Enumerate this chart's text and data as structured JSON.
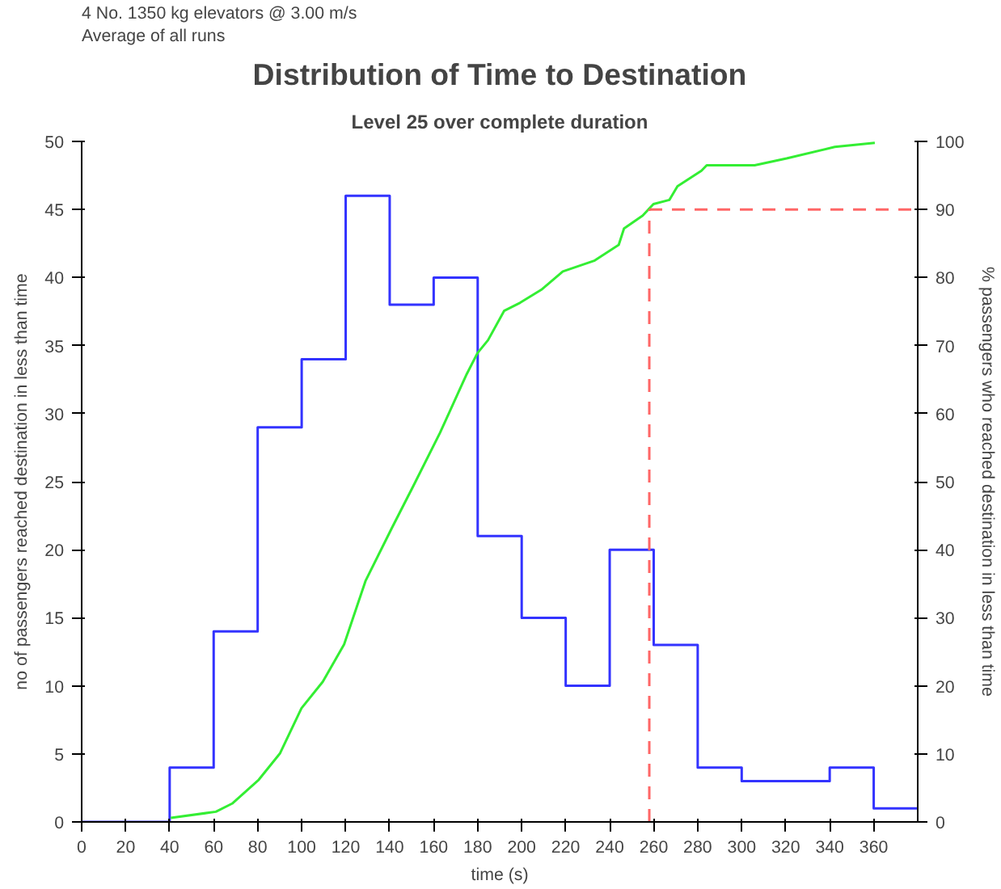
{
  "chart_data": {
    "type": "histogram",
    "title": "Distribution of Time to Destination",
    "subtitle": "Level 25 over complete duration",
    "annotations": [
      "4 No. 1350 kg elevators @ 3.00 m/s",
      "Average of all runs"
    ],
    "xlabel": "time (s)",
    "ylabel": "no of passengers reached destination in less than time",
    "y2label": "% passengers who reached destination in less than time",
    "bins": [
      0,
      20,
      40,
      60,
      80,
      100,
      120,
      140,
      160,
      180,
      200,
      220,
      240,
      260,
      280,
      300,
      320,
      340,
      360,
      380
    ],
    "values": [
      0,
      0,
      4,
      14,
      29,
      34,
      46,
      38,
      40,
      21,
      15,
      10,
      20,
      13,
      4,
      3,
      3,
      4,
      1
    ],
    "color": "#3333ff",
    "series": [
      {
        "type": "line",
        "axis": "y2",
        "color": "#33ee33",
        "x": [
          40.5,
          61,
          68.4,
          80.5,
          90.2,
          99.9,
          109.6,
          119.3,
          129,
          141,
          150.8,
          162.9,
          175,
          179.9,
          184.7,
          192,
          199.3,
          208.9,
          218.7,
          233.2,
          244.1,
          246.5,
          255,
          259.9,
          267.1,
          270.8,
          281.7,
          284.1,
          305.9,
          320.4,
          342.3,
          360.5
        ],
        "values": [
          0.6,
          1.5,
          2.7,
          6.2,
          10.1,
          16.7,
          20.6,
          26.1,
          35.4,
          43.2,
          49.4,
          57.2,
          65.8,
          68.9,
          70.8,
          75.1,
          76.3,
          78.2,
          80.9,
          82.5,
          84.8,
          87.2,
          89.1,
          90.8,
          91.4,
          93.4,
          95.7,
          96.5,
          96.5,
          97.5,
          99.2,
          99.8
        ]
      }
    ],
    "xlim": [
      0,
      380
    ],
    "xticks": [
      0,
      20,
      40,
      60,
      80,
      100,
      120,
      140,
      160,
      180,
      200,
      220,
      240,
      260,
      280,
      300,
      320,
      340,
      360
    ],
    "ylim": [
      0,
      50
    ],
    "yticks": [
      0,
      5,
      10,
      15,
      20,
      25,
      30,
      35,
      40,
      45,
      50
    ],
    "y2lim": [
      0,
      100
    ],
    "y2ticks": [
      0,
      10,
      20,
      30,
      40,
      50,
      60,
      70,
      80,
      90,
      100
    ],
    "ref_lines": [
      {
        "axis": "x",
        "value": 258,
        "color": "#ff6666",
        "line_style": "dashed"
      },
      {
        "axis": "y2",
        "value": 90,
        "color": "#ff6666",
        "line_style": "dashed"
      }
    ],
    "grid": false
  }
}
